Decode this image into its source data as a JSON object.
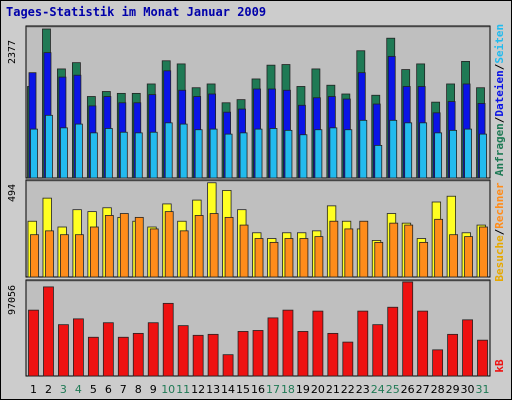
{
  "title": "Tages-Statistik im Monat Januar 2009",
  "colors": {
    "background": "#cccccc",
    "panel": "#bfbfbf",
    "title": "#0000aa",
    "anfragen": "#1f7a55",
    "dateien": "#0a14e6",
    "seiten": "#22bbee",
    "besuche": "#ffff22",
    "rechner": "#ff8c1a",
    "kb": "#ee1111",
    "weekend": "#1f7a55",
    "weekday": "#000000"
  },
  "chart_data": [
    {
      "type": "bar",
      "ymax_label": "2377",
      "ymax": 2377,
      "categories": [
        "1",
        "2",
        "3",
        "4",
        "5",
        "6",
        "7",
        "8",
        "9",
        "10",
        "11",
        "12",
        "13",
        "14",
        "15",
        "16",
        "17",
        "18",
        "19",
        "20",
        "21",
        "22",
        "23",
        "24",
        "25",
        "26",
        "27",
        "28",
        "29",
        "30",
        "31"
      ],
      "weekend_days": [
        "3",
        "4",
        "10",
        "11",
        "17",
        "18",
        "24",
        "25",
        "31"
      ],
      "series": [
        {
          "name": "Anfragen",
          "values": [
            1460,
            2377,
            1740,
            1840,
            1300,
            1380,
            1350,
            1350,
            1500,
            1870,
            1820,
            1440,
            1500,
            1200,
            1250,
            1580,
            1800,
            1810,
            1460,
            1740,
            1480,
            1340,
            2030,
            1320,
            2230,
            1730,
            1820,
            1210,
            1500,
            1860,
            1440
          ]
        },
        {
          "name": "Dateien",
          "values": [
            1680,
            2000,
            1610,
            1640,
            1150,
            1300,
            1200,
            1200,
            1330,
            1710,
            1400,
            1300,
            1340,
            1050,
            1100,
            1420,
            1420,
            1400,
            1160,
            1280,
            1300,
            1260,
            1680,
            1180,
            1940,
            1460,
            1460,
            1040,
            1220,
            1500,
            1190
          ]
        },
        {
          "name": "Seiten",
          "values": [
            780,
            1000,
            800,
            860,
            720,
            790,
            730,
            720,
            730,
            880,
            860,
            770,
            780,
            700,
            720,
            780,
            790,
            760,
            690,
            770,
            800,
            770,
            920,
            520,
            920,
            880,
            880,
            720,
            760,
            780,
            700
          ]
        }
      ]
    },
    {
      "type": "bar",
      "ymax_label": "494",
      "ymax": 494,
      "categories": [
        "1",
        "2",
        "3",
        "4",
        "5",
        "6",
        "7",
        "8",
        "9",
        "10",
        "11",
        "12",
        "13",
        "14",
        "15",
        "16",
        "17",
        "18",
        "19",
        "20",
        "21",
        "22",
        "23",
        "24",
        "25",
        "26",
        "27",
        "28",
        "29",
        "30",
        "31"
      ],
      "series": [
        {
          "name": "Besuche",
          "values": [
            290,
            410,
            260,
            350,
            340,
            360,
            310,
            290,
            260,
            380,
            290,
            400,
            490,
            450,
            350,
            230,
            200,
            230,
            230,
            240,
            370,
            290,
            250,
            190,
            330,
            280,
            200,
            390,
            420,
            230,
            270
          ]
        },
        {
          "name": "Rechner",
          "values": [
            220,
            240,
            220,
            220,
            260,
            320,
            330,
            310,
            250,
            340,
            240,
            320,
            330,
            310,
            270,
            200,
            180,
            200,
            200,
            210,
            290,
            250,
            290,
            180,
            280,
            270,
            180,
            300,
            220,
            210,
            260
          ]
        }
      ]
    },
    {
      "type": "bar",
      "ymax_label": "97056",
      "ymax": 97056,
      "categories": [
        "1",
        "2",
        "3",
        "4",
        "5",
        "6",
        "7",
        "8",
        "9",
        "10",
        "11",
        "12",
        "13",
        "14",
        "15",
        "16",
        "17",
        "18",
        "19",
        "20",
        "21",
        "22",
        "23",
        "24",
        "25",
        "26",
        "27",
        "28",
        "29",
        "30",
        "31"
      ],
      "series": [
        {
          "name": "KB",
          "values": [
            68000,
            92000,
            53000,
            59000,
            40000,
            55000,
            40000,
            44000,
            55000,
            75000,
            52000,
            42000,
            43000,
            22000,
            46000,
            47000,
            60000,
            68000,
            46000,
            67000,
            44000,
            35000,
            67000,
            53000,
            71000,
            97056,
            67000,
            27000,
            43000,
            58000,
            37000
          ]
        }
      ]
    }
  ],
  "legends": {
    "top": [
      {
        "label": "Anfragen",
        "color": "#1f7a55"
      },
      {
        "label": "/",
        "color": "#000000"
      },
      {
        "label": "Dateien",
        "color": "#0a14e6"
      },
      {
        "label": "/",
        "color": "#000000"
      },
      {
        "label": "Seiten",
        "color": "#22bbee"
      }
    ],
    "middle": [
      {
        "label": "Besuche",
        "color": "#e6a800"
      },
      {
        "label": "/",
        "color": "#000000"
      },
      {
        "label": "Rechner",
        "color": "#ff8c1a"
      }
    ],
    "bottom": [
      {
        "label": "kB",
        "color": "#ee1111"
      }
    ]
  }
}
